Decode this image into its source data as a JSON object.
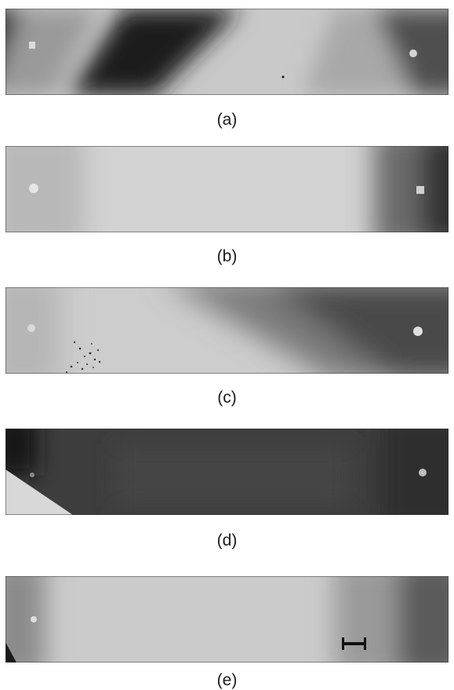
{
  "figure": {
    "panels": [
      {
        "label": "(a)",
        "description": "diagonal dark bands"
      },
      {
        "label": "(b)",
        "description": "uniform light field"
      },
      {
        "label": "(c)",
        "description": "light field with faint scattered marks"
      },
      {
        "label": "(d)",
        "description": "dark field with light corner wedge"
      },
      {
        "label": "(e)",
        "description": "light field with scale bar"
      }
    ]
  }
}
